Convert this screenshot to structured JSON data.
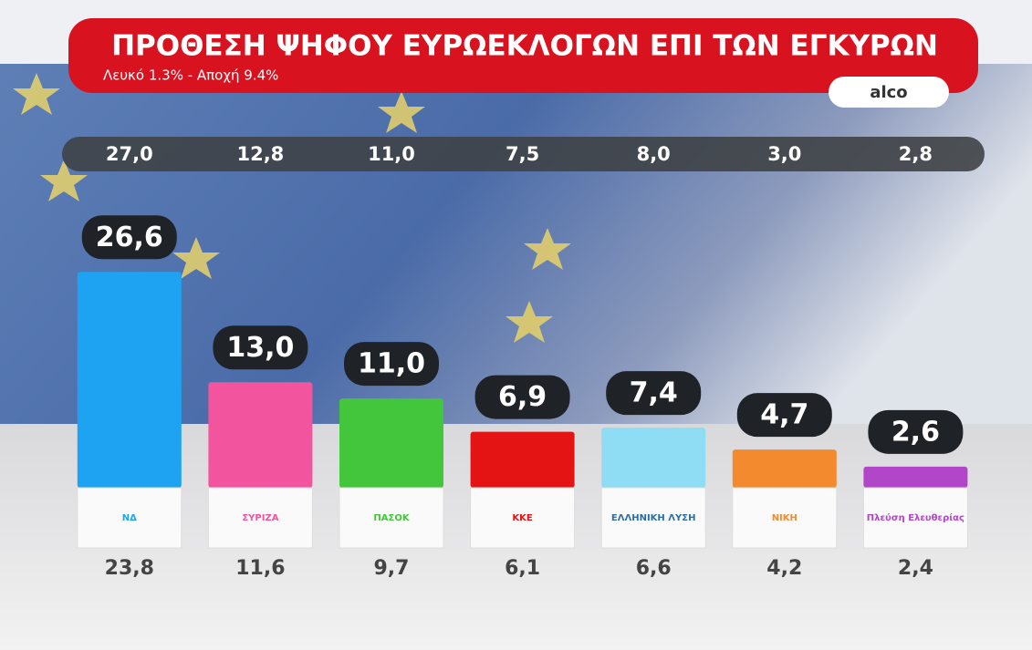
{
  "chart_data": {
    "type": "bar",
    "title": "ΠΡΟΘΕΣΗ ΨΗΦΟΥ ΕΥΡΩΕΚΛΟΓΩΝ ΕΠΙ ΤΩΝ ΕΓΚΥΡΩΝ",
    "subtitle": "Λευκό 1.3% - Αποχή  9.4%",
    "source": "alco",
    "categories": [
      "ΝΔ",
      "ΣΥΡΙΖΑ",
      "ΠΑΣΟΚ",
      "ΚΚΕ",
      "ΕΛΛΗΝΙΚΗ ΛΥΣΗ",
      "ΝΙΚΗ",
      "Πλεύση Ελευθερίας"
    ],
    "values": [
      26.6,
      13.0,
      11.0,
      6.9,
      7.4,
      4.7,
      2.6
    ],
    "value_labels": [
      "26,6",
      "13,0",
      "11,0",
      "6,9",
      "7,4",
      "4,7",
      "2,6"
    ],
    "colors": [
      "#1ea3f2",
      "#f2559d",
      "#44c63c",
      "#e51414",
      "#8fdcf5",
      "#f38a2e",
      "#b246c9"
    ],
    "top_row": {
      "values": [
        27.0,
        12.8,
        11.0,
        7.5,
        8.0,
        3.0,
        2.8
      ],
      "value_labels": [
        "27,0",
        "12,8",
        "11,0",
        "7,5",
        "8,0",
        "3,0",
        "2,8"
      ]
    },
    "bottom_row": {
      "values": [
        23.8,
        11.6,
        9.7,
        6.1,
        6.6,
        4.2,
        2.4
      ],
      "value_labels": [
        "23,8",
        "11,6",
        "9,7",
        "6,1",
        "6,6",
        "4,2",
        "2,4"
      ]
    },
    "ylim": [
      0,
      30
    ]
  }
}
